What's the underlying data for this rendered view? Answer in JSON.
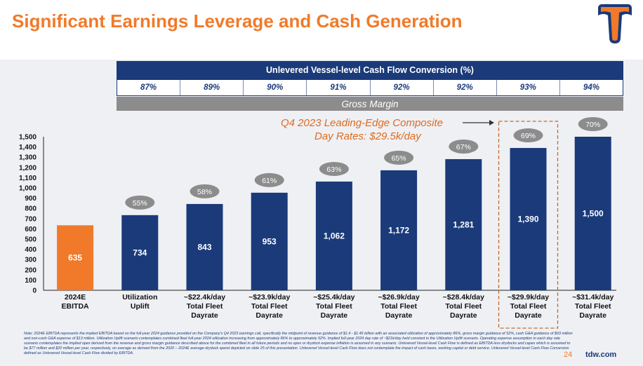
{
  "title": "Significant Earnings Leverage and Cash Generation",
  "conversion": {
    "header": "Unlevered Vessel-level Cash Flow Conversion (%)",
    "values": [
      "87%",
      "89%",
      "90%",
      "91%",
      "92%",
      "92%",
      "93%",
      "94%"
    ]
  },
  "gross_margin_label": "Gross Margin",
  "q4_note": {
    "line1": "Q4 2023 Leading-Edge Composite",
    "line2": "Day Rates: $29.5k/day"
  },
  "colors": {
    "navy": "#1a3a7a",
    "orange": "#f07a2a",
    "bubble": "#8c8c8c",
    "highlight_border": "#c86a2a"
  },
  "chart_data": {
    "type": "bar",
    "categories": [
      [
        "2024E",
        "EBITDA"
      ],
      [
        "Utilization",
        "Uplift"
      ],
      [
        "~$22.4k/day",
        "Total Fleet",
        "Dayrate"
      ],
      [
        "~$23.9k/day",
        "Total Fleet",
        "Dayrate"
      ],
      [
        "~$25.4k/day",
        "Total Fleet",
        "Dayrate"
      ],
      [
        "~$26.9k/day",
        "Total Fleet",
        "Dayrate"
      ],
      [
        "~$28.4k/day",
        "Total Fleet",
        "Dayrate"
      ],
      [
        "~$29.9k/day",
        "Total Fleet",
        "Dayrate"
      ],
      [
        "~$31.4k/day",
        "Total Fleet",
        "Dayrate"
      ]
    ],
    "values": [
      635,
      734,
      843,
      953,
      1062,
      1172,
      1281,
      1390,
      1500
    ],
    "value_labels": [
      "635",
      "734",
      "843",
      "953",
      "1,062",
      "1,172",
      "1,281",
      "1,390",
      "1,500"
    ],
    "gross_margins": [
      "",
      "55%",
      "58%",
      "61%",
      "63%",
      "65%",
      "67%",
      "69%",
      "70%"
    ],
    "bar_colors": [
      "#f07a2a",
      "#1a3a7a",
      "#1a3a7a",
      "#1a3a7a",
      "#1a3a7a",
      "#1a3a7a",
      "#1a3a7a",
      "#1a3a7a",
      "#1a3a7a"
    ],
    "highlighted_index": 7,
    "ylim": [
      0,
      1500
    ],
    "yticks": [
      0,
      100,
      200,
      300,
      400,
      500,
      600,
      700,
      800,
      900,
      1000,
      1100,
      1200,
      1300,
      1400,
      1500
    ],
    "ytick_labels": [
      "0",
      "100",
      "200",
      "300",
      "400",
      "500",
      "600",
      "700",
      "800",
      "900",
      "1,000",
      "1,100",
      "1,200",
      "1,300",
      "1,400",
      "1,500"
    ],
    "grid": false
  },
  "footnote": "Note: 2024E EBITDA represents the implied EBITDA based on the full-year 2024 guidance provided on the Company's Q4 2023 earnings call, specifically the midpoint of revenue guidance of $1.4 - $1.45 billion with an associated utilization of approximately 86%, gross margin guidance of 52%, cash G&A guidance of $93 million and non-cash G&A expense of $13 million. Utilization Uplift scenario contemplates combined fleet full-year 2024 utilization increasing from approximately 86% to approximately 92%. Implied full-year 2024 day rate of ~$21k/day held constant in the Utilization Uplift scenario. Operating expense assumption in each day rate scenario contemplates the implied opex derived from the revenue and gross margin guidance described above for the combined fleet in all future periods and no opex or drydock expense inflation is assumed in any scenario. Unlevered Vessel-level Cash Flow is defined as EBITDA less drydocks and capex which is assumed to be $77 million and $20 million per year, respectively, on average as derived from the 2020 – 2024E average drydock spend depicted on slide 25 of this presentation. Unlevered Vessel-level Cash Flow does not contemplate the impact of cash taxes, working capital or debt service. Unlevered Vessel-level Cash Flow Conversion defined as Unlevered Vessel-level Cash Flow divided by EBITDA.",
  "page_number": "24",
  "website": "tdw.com"
}
